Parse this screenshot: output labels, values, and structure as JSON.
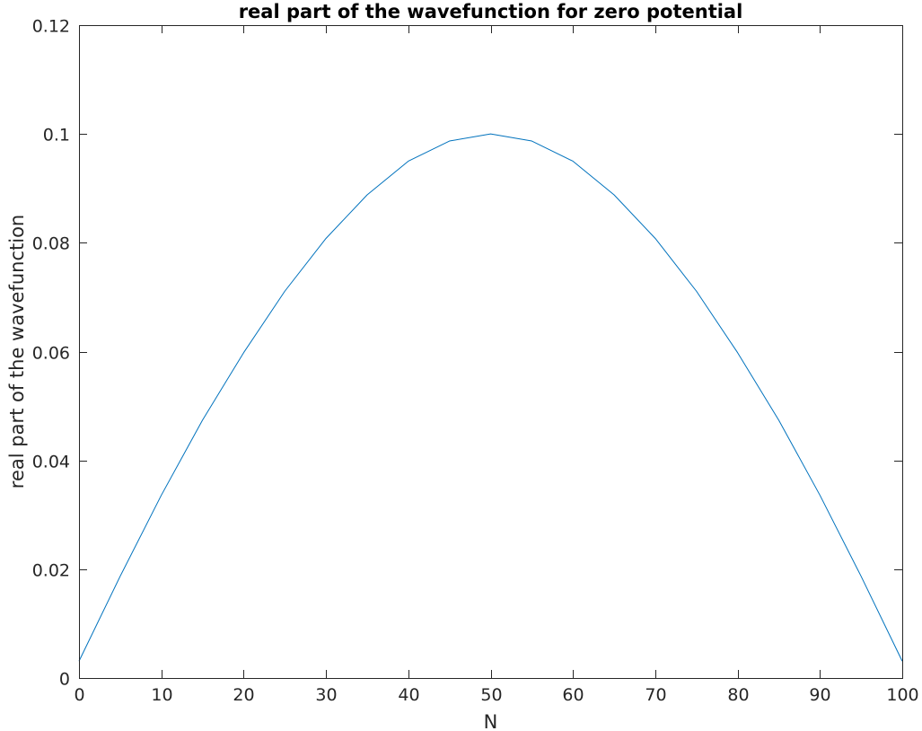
{
  "chart_data": {
    "type": "line",
    "title": "real part of the wavefunction for zero potential",
    "xlabel": "N",
    "ylabel": "real part of the wavefunction",
    "xlim": [
      0,
      100
    ],
    "ylim": [
      0,
      0.12
    ],
    "xticks": [
      0,
      10,
      20,
      30,
      40,
      50,
      60,
      70,
      80,
      90,
      100
    ],
    "xtick_labels": [
      "0",
      "10",
      "20",
      "30",
      "40",
      "50",
      "60",
      "70",
      "80",
      "90",
      "100"
    ],
    "yticks": [
      0,
      0.02,
      0.04,
      0.06,
      0.08,
      0.1,
      0.12
    ],
    "ytick_labels": [
      "0",
      "0.02",
      "0.04",
      "0.06",
      "0.08",
      "0.1",
      "0.12"
    ],
    "grid": false,
    "box": true,
    "series": [
      {
        "color": "#0072BD",
        "x": [
          0,
          5,
          10,
          15,
          20,
          25,
          30,
          35,
          40,
          45,
          50,
          55,
          60,
          65,
          70,
          75,
          80,
          85,
          90,
          95,
          100
        ],
        "y": [
          0.0031,
          0.0187,
          0.0336,
          0.0474,
          0.0598,
          0.0711,
          0.0808,
          0.0888,
          0.095,
          0.0987,
          0.1,
          0.0987,
          0.095,
          0.0888,
          0.0808,
          0.0711,
          0.0598,
          0.0474,
          0.0336,
          0.0187,
          0.0031
        ]
      }
    ]
  }
}
